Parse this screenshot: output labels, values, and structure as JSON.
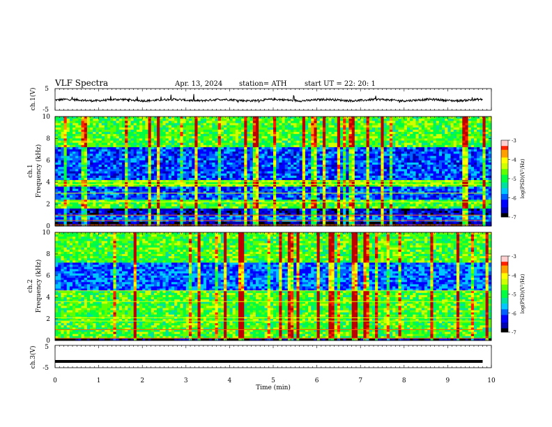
{
  "header": {
    "title": "VLF  Spectra",
    "date": "Apr. 13, 2024",
    "station": "station= ATH",
    "start": "start  UT  =    22: 20: 1"
  },
  "chart_data": [
    {
      "type": "line",
      "name": "ch1-waveform",
      "ylabel": "ch.1(V)",
      "ylim": [
        -5,
        5
      ],
      "ytick_labels": [
        "5",
        "-5"
      ],
      "xlim": [
        0,
        10
      ],
      "x_start": 0,
      "x_end": 9.8,
      "baseline": 0,
      "amplitude_note": "noisy trace centered near 0 V"
    },
    {
      "type": "heatmap",
      "name": "ch1-spectrogram",
      "ylabel": "ch.1\nFrequency  (kHz)",
      "ylim": [
        0,
        10
      ],
      "yticks": [
        0,
        2,
        4,
        6,
        8,
        10
      ],
      "xlim": [
        0,
        10
      ],
      "colorbar": {
        "label": "log(PSD)(V²/Hz)",
        "range": [
          -7,
          -3
        ],
        "ticks": [
          "-3",
          "-4",
          "-5",
          "-6",
          "-7"
        ]
      }
    },
    {
      "type": "heatmap",
      "name": "ch2-spectrogram",
      "ylabel": "ch.2\nFrequency  (kHz)",
      "ylim": [
        0,
        10
      ],
      "yticks": [
        0,
        2,
        4,
        6,
        8,
        10
      ],
      "xlim": [
        0,
        10
      ],
      "colorbar": {
        "label": "log(PSD)(V²/Hz)",
        "range": [
          -7,
          -3
        ],
        "ticks": [
          "-3",
          "-4",
          "-5",
          "-6",
          "-7"
        ]
      }
    },
    {
      "type": "line",
      "name": "ch3-waveform",
      "ylabel": "ch.3(V)",
      "ylim": [
        -5,
        5
      ],
      "ytick_labels": [
        "5",
        "-5"
      ],
      "xlim": [
        0,
        10
      ],
      "x_start": 0,
      "x_end": 9.8,
      "baseline": -2.2,
      "amplitude_note": "flat thick trace near -2 V"
    }
  ],
  "xaxis": {
    "label": "Time  (min)",
    "ticks": [
      "0",
      "1",
      "2",
      "3",
      "4",
      "5",
      "6",
      "7",
      "8",
      "9",
      "10"
    ]
  },
  "colors": {
    "spectro_palette": [
      "#000000",
      "#0000b0",
      "#0000ff",
      "#0060ff",
      "#00c8ff",
      "#00e0a0",
      "#00ff40",
      "#60ff00",
      "#d0ff00",
      "#ffff00",
      "#ffa000",
      "#ff2000",
      "#c00000",
      "#ffffff"
    ]
  }
}
